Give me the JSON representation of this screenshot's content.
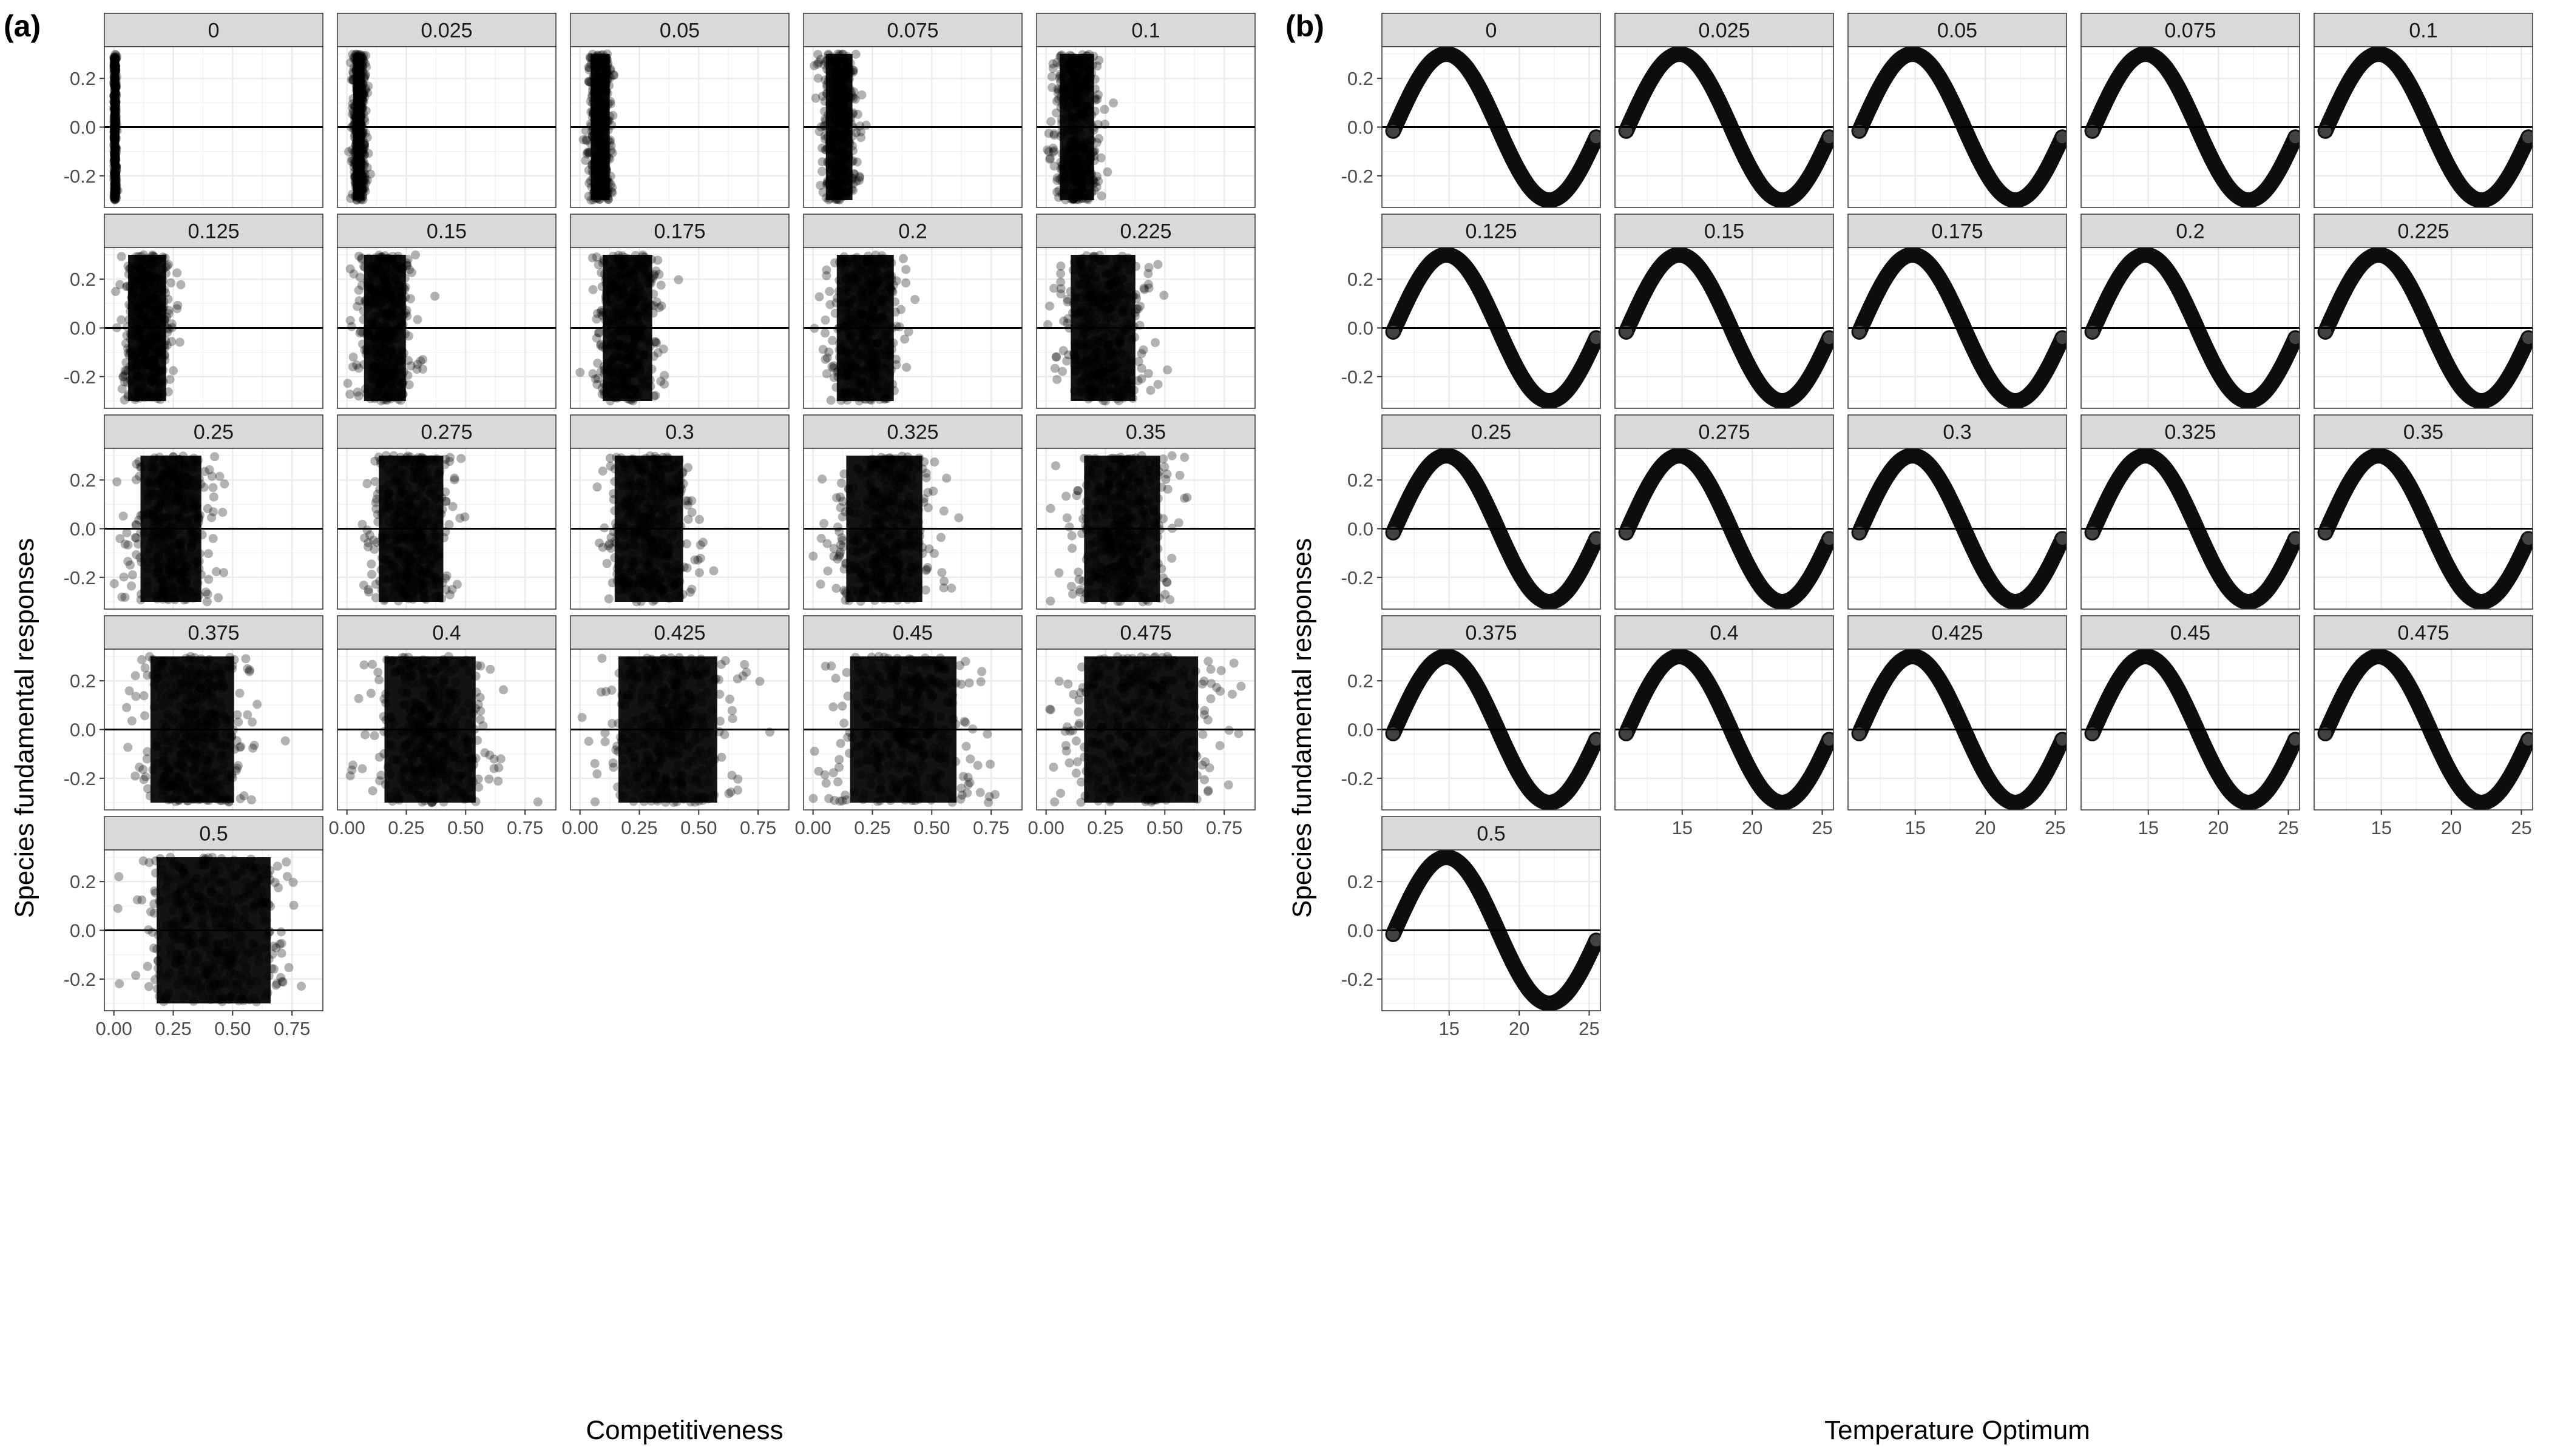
{
  "figure": {
    "panel_a_tag": "(a)",
    "panel_b_tag": "(b)"
  },
  "chart_data": [
    {
      "type": "scatter",
      "panel": "(a)",
      "xlabel": "Competitiveness",
      "ylabel": "Species fundamental responses",
      "facets": [
        "0",
        "0.025",
        "0.05",
        "0.075",
        "0.1",
        "0.125",
        "0.15",
        "0.175",
        "0.2",
        "0.225",
        "0.25",
        "0.275",
        "0.3",
        "0.325",
        "0.35",
        "0.375",
        "0.4",
        "0.425",
        "0.45",
        "0.475",
        "0.5"
      ],
      "xlim": [
        -0.04,
        0.88
      ],
      "ylim": [
        -0.33,
        0.33
      ],
      "xticks": [
        0.0,
        0.25,
        0.5,
        0.75
      ],
      "xtick_labels": [
        "0.00",
        "0.25",
        "0.50",
        "0.75"
      ],
      "yticks": [
        -0.2,
        0.0,
        0.2
      ],
      "ytick_labels": [
        "-0.2",
        "0.0",
        "0.2"
      ],
      "hline_y": 0,
      "grid": true,
      "point_color": "#000000",
      "point_alpha": 0.3,
      "y_range": [
        -0.3,
        0.3
      ],
      "x_center_by_facet": [
        0.005,
        0.05,
        0.085,
        0.11,
        0.13,
        0.14,
        0.16,
        0.2,
        0.22,
        0.24,
        0.24,
        0.27,
        0.29,
        0.3,
        0.32,
        0.33,
        0.35,
        0.37,
        0.38,
        0.4,
        0.42
      ],
      "x_spread_by_facet": [
        0.003,
        0.015,
        0.025,
        0.035,
        0.045,
        0.05,
        0.055,
        0.065,
        0.075,
        0.085,
        0.08,
        0.085,
        0.09,
        0.1,
        0.1,
        0.11,
        0.12,
        0.13,
        0.14,
        0.15,
        0.15
      ]
    },
    {
      "type": "scatter",
      "panel": "(b)",
      "xlabel": "Temperature Optimum",
      "ylabel": "Species fundamental responses",
      "facets": [
        "0",
        "0.025",
        "0.05",
        "0.075",
        "0.1",
        "0.125",
        "0.15",
        "0.175",
        "0.2",
        "0.225",
        "0.25",
        "0.275",
        "0.3",
        "0.325",
        "0.35",
        "0.375",
        "0.4",
        "0.425",
        "0.45",
        "0.475",
        "0.5"
      ],
      "xlim": [
        10.2,
        25.8
      ],
      "ylim": [
        -0.33,
        0.33
      ],
      "xticks": [
        15,
        20,
        25
      ],
      "xtick_labels": [
        "15",
        "20",
        "25"
      ],
      "yticks": [
        -0.2,
        0.0,
        0.2
      ],
      "ytick_labels": [
        "-0.2",
        "0.0",
        "0.2"
      ],
      "hline_y": 0,
      "grid": true,
      "point_color": "#000000",
      "point_alpha": 0.3,
      "curve": {
        "x_min": 11,
        "x_max": 25.5,
        "amplitude": 0.3,
        "period": 14.7,
        "peak_x": 14.8
      }
    }
  ]
}
